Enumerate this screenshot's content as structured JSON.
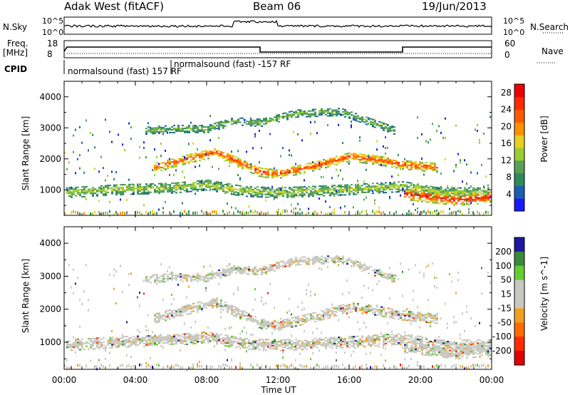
{
  "header": {
    "station": "Adak West (fitACF)",
    "beam": "Beam 06",
    "date": "19/Jun/2013"
  },
  "strips": {
    "nsky_label": "N.Sky",
    "nsearch_label": "N.Search",
    "noise_ticks_left": [
      "10^5",
      "10^0"
    ],
    "noise_ticks_right": [
      "10^5",
      "10^0"
    ],
    "freq_label_top": "Freq.",
    "freq_label_bottom": "[MHz]",
    "freq_ticks": [
      "18",
      "8"
    ],
    "nave_label": "Nave",
    "nave_ticks": [
      "60",
      "0"
    ],
    "cpid_label": "CPID",
    "cpid_segments": [
      {
        "start": "00:00",
        "end": "06:00",
        "text": "normalsound (fast) 157 RF"
      },
      {
        "start": "06:00",
        "end": "24:00",
        "text": "normalsound (fast) -157 RF"
      }
    ]
  },
  "chart_data": [
    {
      "type": "heatmap",
      "title": "",
      "xlabel": "",
      "ylabel": "Slant Range [km]",
      "x_ticks": [
        "00:00",
        "04:00",
        "08:00",
        "12:00",
        "16:00",
        "20:00",
        "00:00"
      ],
      "xlim_hours": [
        0,
        24
      ],
      "y_ticks": [
        1000,
        2000,
        3000,
        4000
      ],
      "ylim": [
        180,
        4500
      ],
      "colorbar": {
        "label": "Power [dB]",
        "ticks": [
          4,
          8,
          12,
          16,
          20,
          24,
          28
        ],
        "range": [
          0,
          30
        ],
        "colors": [
          "#1a1aff",
          "#1c5fb0",
          "#2e8a5a",
          "#5aa05a",
          "#9acd32",
          "#e8d020",
          "#ff9000",
          "#ff5a00",
          "#ff2a00",
          "#ee0000"
        ]
      },
      "echo_bands": [
        {
          "name": "near-range scatter",
          "points": [
            [
              0,
              900
            ],
            [
              3,
              1000
            ],
            [
              6,
              1050
            ],
            [
              8,
              1150
            ],
            [
              10,
              950
            ],
            [
              12,
              900
            ],
            [
              16,
              1000
            ],
            [
              19,
              1100
            ],
            [
              21,
              900
            ],
            [
              24,
              900
            ]
          ],
          "width_km": 350,
          "power_db": 14
        },
        {
          "name": "main band",
          "points": [
            [
              5,
              1700
            ],
            [
              7,
              2000
            ],
            [
              8.5,
              2200
            ],
            [
              10,
              1800
            ],
            [
              11,
              1550
            ],
            [
              12,
              1500
            ],
            [
              14,
              1750
            ],
            [
              16,
              2050
            ],
            [
              17.5,
              1950
            ],
            [
              19,
              1800
            ],
            [
              21,
              1700
            ]
          ],
          "width_km": 300,
          "power_db": 24
        },
        {
          "name": "upper band",
          "points": [
            [
              4.5,
              2900
            ],
            [
              6,
              2950
            ],
            [
              8,
              2950
            ],
            [
              9.5,
              3200
            ],
            [
              11,
              3150
            ],
            [
              13,
              3450
            ],
            [
              15.5,
              3500
            ],
            [
              17,
              3200
            ],
            [
              18.5,
              2900
            ]
          ],
          "width_km": 250,
          "power_db": 12
        },
        {
          "name": "strong near echoes",
          "points": [
            [
              19,
              850
            ],
            [
              20.5,
              750
            ],
            [
              22,
              650
            ],
            [
              24,
              750
            ]
          ],
          "width_km": 350,
          "power_db": 27
        }
      ]
    },
    {
      "type": "heatmap",
      "title": "",
      "xlabel": "Time UT",
      "ylabel": "Slant Range [km]",
      "x_ticks": [
        "00:00",
        "04:00",
        "08:00",
        "12:00",
        "16:00",
        "20:00",
        "00:00"
      ],
      "xlim_hours": [
        0,
        24
      ],
      "y_ticks": [
        1000,
        2000,
        3000,
        4000
      ],
      "ylim": [
        180,
        4500
      ],
      "colorbar": {
        "label": "Velocity [m s^-1]",
        "ticks": [
          200,
          100,
          50,
          15,
          -15,
          -50,
          -100,
          -200
        ],
        "colors": [
          "#1a1aa0",
          "#3a8a3a",
          "#66cc33",
          "#c8c8c0",
          "#c8c8c0",
          "#f0a020",
          "#ff6a00",
          "#ff2a00",
          "#e00000"
        ]
      },
      "dominant_value": "-15 to 15"
    }
  ],
  "colors": {
    "axis": "#000000",
    "low_velocity_gray": "#c8c8c0"
  }
}
